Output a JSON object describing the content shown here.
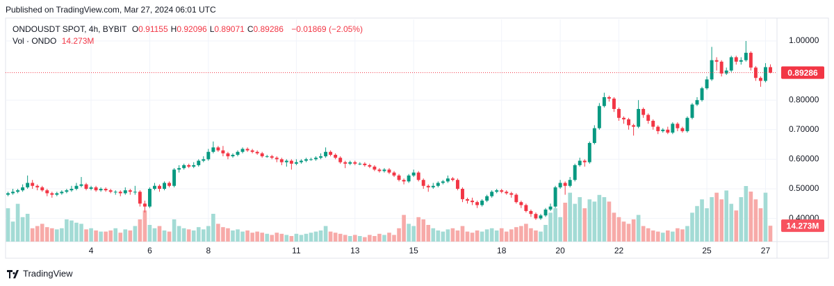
{
  "header": {
    "published": "Published on TradingView.com, Mar 27, 2024 06:01 UTC"
  },
  "footer": {
    "brand": "TradingView"
  },
  "chart_data": {
    "type": "candlestick",
    "title": "ONDOUSDT SPOT, 4h, BYBIT",
    "ohlc_labels": [
      "O",
      "H",
      "L",
      "C"
    ],
    "change": "−0.01869 (−2.05%)",
    "up_color": "#089981",
    "down_color": "#f23645",
    "volume_up_color": "#a3dbd5",
    "volume_down_color": "#f7aaa8",
    "grid": true,
    "categories": [
      null,
      null,
      null,
      null,
      null,
      null,
      null,
      null,
      null,
      null,
      null,
      null,
      null,
      null,
      null,
      null,
      null,
      "4",
      null,
      null,
      null,
      null,
      null,
      null,
      null,
      null,
      null,
      null,
      null,
      "6",
      null,
      null,
      null,
      null,
      null,
      null,
      null,
      null,
      null,
      null,
      null,
      "8",
      null,
      null,
      null,
      null,
      null,
      null,
      null,
      null,
      null,
      null,
      null,
      null,
      null,
      null,
      null,
      null,
      null,
      "11",
      null,
      null,
      null,
      null,
      null,
      null,
      null,
      null,
      null,
      null,
      null,
      "13",
      null,
      null,
      null,
      null,
      null,
      null,
      null,
      null,
      null,
      null,
      null,
      "15",
      null,
      null,
      null,
      null,
      null,
      null,
      null,
      null,
      null,
      null,
      null,
      null,
      null,
      null,
      null,
      null,
      null,
      "18",
      null,
      null,
      null,
      null,
      null,
      null,
      null,
      null,
      null,
      null,
      null,
      "20",
      null,
      null,
      null,
      null,
      null,
      null,
      null,
      null,
      null,
      null,
      null,
      "22",
      null,
      null,
      null,
      null,
      null,
      null,
      null,
      null,
      null,
      null,
      null,
      null,
      null,
      null,
      null,
      null,
      null,
      "25",
      null,
      null,
      null,
      null,
      null,
      null,
      null,
      null,
      null,
      null,
      null,
      "27",
      null
    ],
    "open": [
      0.48,
      0.485,
      0.49,
      0.495,
      0.505,
      0.52,
      0.51,
      0.505,
      0.495,
      0.485,
      0.48,
      0.485,
      0.49,
      0.495,
      0.5,
      0.51,
      0.515,
      0.5,
      0.505,
      0.495,
      0.5,
      0.495,
      0.49,
      0.49,
      0.485,
      0.495,
      0.49,
      0.49,
      0.45,
      0.44,
      0.5,
      0.51,
      0.5,
      0.52,
      0.51,
      0.565,
      0.57,
      0.58,
      0.575,
      0.58,
      0.595,
      0.6,
      0.625,
      0.64,
      0.63,
      0.62,
      0.61,
      0.615,
      0.625,
      0.635,
      0.63,
      0.625,
      0.62,
      0.61,
      0.61,
      0.605,
      0.6,
      0.59,
      0.595,
      0.585,
      0.59,
      0.595,
      0.6,
      0.6,
      0.605,
      0.61,
      0.625,
      0.615,
      0.605,
      0.59,
      0.585,
      0.59,
      0.585,
      0.585,
      0.58,
      0.575,
      0.565,
      0.56,
      0.565,
      0.555,
      0.545,
      0.53,
      0.525,
      0.545,
      0.555,
      0.53,
      0.51,
      0.505,
      0.51,
      0.52,
      0.525,
      0.535,
      0.53,
      0.5,
      0.465,
      0.46,
      0.455,
      0.445,
      0.46,
      0.475,
      0.49,
      0.495,
      0.49,
      0.485,
      0.48,
      0.455,
      0.445,
      0.425,
      0.415,
      0.4,
      0.41,
      0.43,
      0.44,
      0.505,
      0.52,
      0.51,
      0.53,
      0.58,
      0.595,
      0.59,
      0.655,
      0.705,
      0.78,
      0.81,
      0.805,
      0.77,
      0.74,
      0.735,
      0.715,
      0.71,
      0.77,
      0.75,
      0.73,
      0.71,
      0.695,
      0.7,
      0.69,
      0.72,
      0.705,
      0.695,
      0.74,
      0.785,
      0.8,
      0.84,
      0.87,
      0.935,
      0.93,
      0.89,
      0.9,
      0.945,
      0.93,
      0.935,
      0.96,
      0.91,
      0.875,
      0.865,
      0.91155
    ],
    "high": [
      0.49,
      0.5,
      0.5,
      0.515,
      0.545,
      0.53,
      0.515,
      0.51,
      0.5,
      0.49,
      0.49,
      0.495,
      0.5,
      0.51,
      0.52,
      0.54,
      0.52,
      0.51,
      0.51,
      0.505,
      0.505,
      0.5,
      0.495,
      0.495,
      0.505,
      0.5,
      0.51,
      0.495,
      0.46,
      0.505,
      0.52,
      0.515,
      0.525,
      0.525,
      0.57,
      0.58,
      0.585,
      0.585,
      0.59,
      0.6,
      0.61,
      0.635,
      0.66,
      0.645,
      0.645,
      0.625,
      0.62,
      0.63,
      0.64,
      0.64,
      0.635,
      0.63,
      0.625,
      0.615,
      0.615,
      0.61,
      0.605,
      0.6,
      0.6,
      0.6,
      0.6,
      0.605,
      0.605,
      0.61,
      0.62,
      0.64,
      0.63,
      0.62,
      0.61,
      0.595,
      0.595,
      0.595,
      0.59,
      0.59,
      0.585,
      0.58,
      0.57,
      0.57,
      0.57,
      0.56,
      0.55,
      0.535,
      0.55,
      0.565,
      0.56,
      0.535,
      0.515,
      0.52,
      0.525,
      0.53,
      0.545,
      0.54,
      0.535,
      0.505,
      0.47,
      0.47,
      0.46,
      0.465,
      0.48,
      0.495,
      0.5,
      0.5,
      0.495,
      0.49,
      0.485,
      0.46,
      0.45,
      0.43,
      0.42,
      0.415,
      0.435,
      0.45,
      0.51,
      0.53,
      0.525,
      0.54,
      0.585,
      0.605,
      0.6,
      0.66,
      0.715,
      0.79,
      0.825,
      0.815,
      0.81,
      0.775,
      0.745,
      0.74,
      0.72,
      0.8,
      0.775,
      0.755,
      0.735,
      0.715,
      0.705,
      0.71,
      0.725,
      0.725,
      0.71,
      0.745,
      0.79,
      0.81,
      0.845,
      0.88,
      0.98,
      0.945,
      0.935,
      0.91,
      0.95,
      0.95,
      0.945,
      1.0,
      0.965,
      0.915,
      0.88,
      0.925,
      0.92096
    ],
    "low": [
      0.475,
      0.48,
      0.485,
      0.49,
      0.5,
      0.5,
      0.495,
      0.49,
      0.475,
      0.47,
      0.475,
      0.48,
      0.485,
      0.49,
      0.495,
      0.505,
      0.495,
      0.495,
      0.49,
      0.49,
      0.49,
      0.485,
      0.48,
      0.475,
      0.48,
      0.48,
      0.48,
      0.44,
      0.42,
      0.435,
      0.495,
      0.49,
      0.495,
      0.505,
      0.505,
      0.555,
      0.565,
      0.57,
      0.57,
      0.575,
      0.59,
      0.595,
      0.62,
      0.625,
      0.61,
      0.6,
      0.605,
      0.61,
      0.62,
      0.625,
      0.62,
      0.615,
      0.605,
      0.605,
      0.6,
      0.59,
      0.58,
      0.575,
      0.565,
      0.58,
      0.585,
      0.59,
      0.595,
      0.595,
      0.6,
      0.605,
      0.61,
      0.6,
      0.585,
      0.57,
      0.58,
      0.58,
      0.58,
      0.575,
      0.57,
      0.56,
      0.555,
      0.555,
      0.55,
      0.54,
      0.525,
      0.515,
      0.52,
      0.54,
      0.525,
      0.5,
      0.49,
      0.5,
      0.505,
      0.515,
      0.52,
      0.525,
      0.495,
      0.455,
      0.45,
      0.445,
      0.435,
      0.44,
      0.455,
      0.47,
      0.485,
      0.485,
      0.48,
      0.47,
      0.45,
      0.435,
      0.42,
      0.405,
      0.395,
      0.395,
      0.405,
      0.425,
      0.435,
      0.5,
      0.48,
      0.505,
      0.525,
      0.575,
      0.575,
      0.585,
      0.65,
      0.7,
      0.775,
      0.795,
      0.76,
      0.73,
      0.72,
      0.7,
      0.68,
      0.705,
      0.74,
      0.72,
      0.7,
      0.685,
      0.69,
      0.685,
      0.685,
      0.695,
      0.69,
      0.69,
      0.735,
      0.78,
      0.795,
      0.835,
      0.865,
      0.9,
      0.88,
      0.885,
      0.895,
      0.92,
      0.92,
      0.93,
      0.9,
      0.865,
      0.845,
      0.86,
      0.89071
    ],
    "close": [
      0.485,
      0.49,
      0.495,
      0.505,
      0.52,
      0.51,
      0.505,
      0.495,
      0.485,
      0.48,
      0.485,
      0.49,
      0.495,
      0.5,
      0.51,
      0.515,
      0.5,
      0.505,
      0.495,
      0.5,
      0.495,
      0.49,
      0.49,
      0.485,
      0.495,
      0.49,
      0.49,
      0.45,
      0.44,
      0.5,
      0.51,
      0.5,
      0.52,
      0.51,
      0.565,
      0.57,
      0.58,
      0.575,
      0.58,
      0.595,
      0.6,
      0.625,
      0.64,
      0.63,
      0.62,
      0.61,
      0.615,
      0.625,
      0.635,
      0.63,
      0.625,
      0.62,
      0.61,
      0.61,
      0.605,
      0.6,
      0.59,
      0.595,
      0.585,
      0.59,
      0.595,
      0.6,
      0.6,
      0.605,
      0.61,
      0.625,
      0.615,
      0.605,
      0.59,
      0.585,
      0.59,
      0.585,
      0.585,
      0.58,
      0.575,
      0.565,
      0.56,
      0.565,
      0.555,
      0.545,
      0.53,
      0.525,
      0.545,
      0.555,
      0.53,
      0.51,
      0.505,
      0.51,
      0.52,
      0.525,
      0.535,
      0.53,
      0.5,
      0.465,
      0.46,
      0.455,
      0.445,
      0.46,
      0.475,
      0.49,
      0.495,
      0.49,
      0.485,
      0.48,
      0.455,
      0.445,
      0.425,
      0.415,
      0.4,
      0.41,
      0.43,
      0.44,
      0.505,
      0.52,
      0.51,
      0.53,
      0.58,
      0.595,
      0.59,
      0.655,
      0.705,
      0.78,
      0.81,
      0.805,
      0.77,
      0.74,
      0.735,
      0.715,
      0.71,
      0.77,
      0.75,
      0.73,
      0.71,
      0.695,
      0.7,
      0.69,
      0.72,
      0.705,
      0.695,
      0.74,
      0.785,
      0.8,
      0.84,
      0.87,
      0.935,
      0.93,
      0.89,
      0.9,
      0.945,
      0.93,
      0.935,
      0.96,
      0.91,
      0.875,
      0.865,
      0.91155,
      0.89286
    ],
    "volume": {
      "name": "Vol · ONDO",
      "values": [
        30,
        18,
        34,
        22,
        25,
        12,
        14,
        16,
        13,
        12,
        11,
        12,
        20,
        19,
        17,
        16,
        11,
        12,
        10,
        9,
        9,
        10,
        12,
        8,
        11,
        10,
        14,
        20,
        28,
        15,
        12,
        14,
        10,
        9,
        20,
        14,
        12,
        11,
        10,
        13,
        11,
        14,
        25,
        16,
        13,
        12,
        10,
        11,
        9,
        10,
        8,
        9,
        8,
        7,
        6,
        8,
        7,
        6,
        5,
        7,
        6,
        7,
        8,
        9,
        10,
        14,
        9,
        8,
        7,
        6,
        5,
        6,
        5,
        4,
        6,
        5,
        7,
        6,
        8,
        6,
        12,
        24,
        16,
        14,
        22,
        20,
        15,
        12,
        10,
        9,
        11,
        12,
        10,
        14,
        9,
        8,
        10,
        9,
        11,
        12,
        10,
        12,
        9,
        11,
        13,
        14,
        16,
        12,
        10,
        9,
        15,
        26,
        30,
        22,
        35,
        44,
        34,
        40,
        30,
        38,
        36,
        42,
        40,
        36,
        26,
        22,
        18,
        16,
        20,
        24,
        14,
        12,
        10,
        9,
        8,
        10,
        9,
        12,
        11,
        14,
        26,
        32,
        38,
        30,
        40,
        44,
        38,
        46,
        34,
        28,
        40,
        50,
        45,
        38,
        30,
        44,
        14.273
      ],
      "value_labels": {
        "156": "14.273M"
      }
    },
    "volume_lim": [
      0,
      200
    ],
    "ylim": [
      0.3216,
      1.0728
    ],
    "yticks": [
      {
        "value": 1,
        "label": "1.00000"
      },
      {
        "value": 0.8,
        "label": "0.80000"
      },
      {
        "value": 0.7,
        "label": "0.70000"
      },
      {
        "value": 0.6,
        "label": "0.60000"
      },
      {
        "value": 0.5,
        "label": "0.50000"
      },
      {
        "value": 0.4,
        "label": "0.40000"
      }
    ]
  }
}
